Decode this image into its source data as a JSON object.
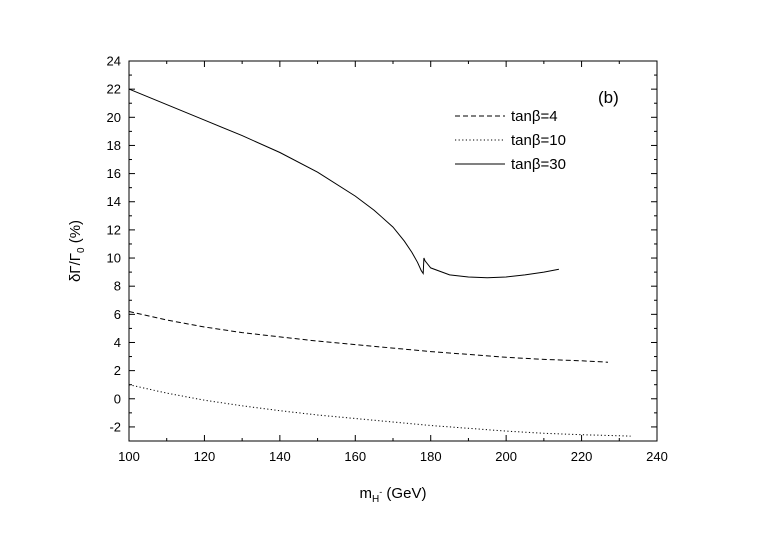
{
  "chart_data": {
    "type": "line",
    "title": "",
    "panel_label": "(b)",
    "xlabel": {
      "main": "m",
      "sub": "H",
      "sup": "-",
      "unit": " (GeV)"
    },
    "ylabel": {
      "main": "δΓ/Γ",
      "sub": "0",
      "unit": " (%)"
    },
    "xlim": [
      100,
      240
    ],
    "ylim": [
      -3,
      24
    ],
    "xticks": [
      100,
      120,
      140,
      160,
      180,
      200,
      220,
      240
    ],
    "yticks": [
      -2,
      0,
      2,
      4,
      6,
      8,
      10,
      12,
      14,
      16,
      18,
      20,
      22,
      24
    ],
    "grid": false,
    "legend_position": "top-right",
    "series": [
      {
        "name": "tanβ=4",
        "dash": "dashed",
        "color": "#000000",
        "x": [
          100,
          110,
          120,
          130,
          140,
          150,
          160,
          170,
          180,
          190,
          200,
          210,
          220,
          227
        ],
        "y": [
          6.2,
          5.6,
          5.1,
          4.7,
          4.4,
          4.1,
          3.85,
          3.6,
          3.35,
          3.15,
          2.95,
          2.8,
          2.7,
          2.6
        ]
      },
      {
        "name": "tanβ=10",
        "dash": "dotted",
        "color": "#000000",
        "x": [
          100,
          110,
          120,
          130,
          140,
          150,
          160,
          170,
          180,
          190,
          200,
          210,
          220,
          233
        ],
        "y": [
          1.0,
          0.4,
          -0.1,
          -0.5,
          -0.85,
          -1.15,
          -1.4,
          -1.65,
          -1.9,
          -2.1,
          -2.3,
          -2.45,
          -2.55,
          -2.65
        ]
      },
      {
        "name": "tanβ=30",
        "dash": "solid",
        "color": "#000000",
        "x": [
          100,
          110,
          120,
          130,
          140,
          150,
          160,
          165,
          170,
          173,
          175,
          176.5,
          177.5,
          178,
          178.2,
          178.5,
          180,
          185,
          190,
          195,
          200,
          205,
          210,
          214
        ],
        "y": [
          22.0,
          20.9,
          19.8,
          18.7,
          17.5,
          16.1,
          14.4,
          13.4,
          12.2,
          11.2,
          10.4,
          9.7,
          9.1,
          8.9,
          10.0,
          9.8,
          9.3,
          8.8,
          8.65,
          8.6,
          8.65,
          8.8,
          9.0,
          9.2
        ]
      }
    ]
  }
}
